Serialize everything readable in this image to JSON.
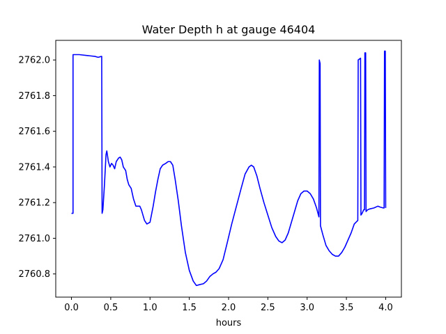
{
  "chart_data": {
    "type": "line",
    "title": "Water Depth h at gauge 46404",
    "xlabel": "hours",
    "ylabel": "",
    "xlim": [
      -0.2,
      4.2
    ],
    "ylim": [
      2760.67,
      2762.11
    ],
    "grid": false,
    "xticks": [
      0.0,
      0.5,
      1.0,
      1.5,
      2.0,
      2.5,
      3.0,
      3.5,
      4.0
    ],
    "xtick_labels": [
      "0.0",
      "0.5",
      "1.0",
      "1.5",
      "2.0",
      "2.5",
      "3.0",
      "3.5",
      "4.0"
    ],
    "yticks": [
      2760.8,
      2761.0,
      2761.2,
      2761.4,
      2761.6,
      2761.8,
      2762.0
    ],
    "ytick_labels": [
      "2760.8",
      "2761.0",
      "2761.2",
      "2761.4",
      "2761.6",
      "2761.8",
      "2762.0"
    ],
    "series_color": "#0000ff",
    "series": [
      {
        "points": [
          [
            0.0,
            2761.14
          ],
          [
            0.02,
            2761.14
          ],
          [
            0.02,
            2762.03
          ],
          [
            0.1,
            2762.03
          ],
          [
            0.2,
            2762.025
          ],
          [
            0.3,
            2762.02
          ],
          [
            0.34,
            2762.015
          ],
          [
            0.38,
            2762.02
          ],
          [
            0.385,
            2762.02
          ],
          [
            0.39,
            2761.14
          ],
          [
            0.4,
            2761.16
          ],
          [
            0.42,
            2761.3
          ],
          [
            0.44,
            2761.47
          ],
          [
            0.45,
            2761.49
          ],
          [
            0.47,
            2761.43
          ],
          [
            0.49,
            2761.4
          ],
          [
            0.51,
            2761.42
          ],
          [
            0.53,
            2761.41
          ],
          [
            0.55,
            2761.39
          ],
          [
            0.57,
            2761.43
          ],
          [
            0.6,
            2761.45
          ],
          [
            0.62,
            2761.455
          ],
          [
            0.64,
            2761.44
          ],
          [
            0.66,
            2761.4
          ],
          [
            0.69,
            2761.38
          ],
          [
            0.71,
            2761.33
          ],
          [
            0.73,
            2761.3
          ],
          [
            0.76,
            2761.28
          ],
          [
            0.79,
            2761.22
          ],
          [
            0.82,
            2761.18
          ],
          [
            0.87,
            2761.18
          ],
          [
            0.89,
            2761.16
          ],
          [
            0.93,
            2761.1
          ],
          [
            0.96,
            2761.08
          ],
          [
            1.0,
            2761.09
          ],
          [
            1.04,
            2761.18
          ],
          [
            1.07,
            2761.26
          ],
          [
            1.1,
            2761.33
          ],
          [
            1.13,
            2761.39
          ],
          [
            1.16,
            2761.41
          ],
          [
            1.2,
            2761.42
          ],
          [
            1.23,
            2761.43
          ],
          [
            1.26,
            2761.43
          ],
          [
            1.29,
            2761.41
          ],
          [
            1.32,
            2761.33
          ],
          [
            1.36,
            2761.21
          ],
          [
            1.4,
            2761.07
          ],
          [
            1.45,
            2760.92
          ],
          [
            1.5,
            2760.82
          ],
          [
            1.55,
            2760.76
          ],
          [
            1.59,
            2760.735
          ],
          [
            1.63,
            2760.74
          ],
          [
            1.68,
            2760.745
          ],
          [
            1.72,
            2760.76
          ],
          [
            1.76,
            2760.785
          ],
          [
            1.8,
            2760.8
          ],
          [
            1.84,
            2760.81
          ],
          [
            1.88,
            2760.83
          ],
          [
            1.93,
            2760.88
          ],
          [
            1.98,
            2760.97
          ],
          [
            2.04,
            2761.08
          ],
          [
            2.1,
            2761.18
          ],
          [
            2.16,
            2761.28
          ],
          [
            2.21,
            2761.36
          ],
          [
            2.26,
            2761.4
          ],
          [
            2.29,
            2761.41
          ],
          [
            2.32,
            2761.4
          ],
          [
            2.36,
            2761.35
          ],
          [
            2.4,
            2761.28
          ],
          [
            2.45,
            2761.2
          ],
          [
            2.5,
            2761.13
          ],
          [
            2.55,
            2761.06
          ],
          [
            2.6,
            2761.01
          ],
          [
            2.64,
            2760.985
          ],
          [
            2.68,
            2760.975
          ],
          [
            2.72,
            2760.99
          ],
          [
            2.76,
            2761.03
          ],
          [
            2.8,
            2761.09
          ],
          [
            2.84,
            2761.15
          ],
          [
            2.88,
            2761.21
          ],
          [
            2.92,
            2761.25
          ],
          [
            2.96,
            2761.265
          ],
          [
            3.0,
            2761.265
          ],
          [
            3.04,
            2761.25
          ],
          [
            3.08,
            2761.22
          ],
          [
            3.12,
            2761.17
          ],
          [
            3.15,
            2761.12
          ],
          [
            3.155,
            2762.0
          ],
          [
            3.165,
            2761.98
          ],
          [
            3.17,
            2761.07
          ],
          [
            3.2,
            2761.02
          ],
          [
            3.24,
            2760.96
          ],
          [
            3.28,
            2760.93
          ],
          [
            3.32,
            2760.91
          ],
          [
            3.36,
            2760.9
          ],
          [
            3.4,
            2760.9
          ],
          [
            3.44,
            2760.92
          ],
          [
            3.48,
            2760.95
          ],
          [
            3.52,
            2760.99
          ],
          [
            3.56,
            2761.03
          ],
          [
            3.6,
            2761.08
          ],
          [
            3.645,
            2761.1
          ],
          [
            3.65,
            2762.0
          ],
          [
            3.68,
            2762.01
          ],
          [
            3.685,
            2761.13
          ],
          [
            3.7,
            2761.14
          ],
          [
            3.72,
            2761.16
          ],
          [
            3.73,
            2761.16
          ],
          [
            3.735,
            2762.04
          ],
          [
            3.745,
            2762.04
          ],
          [
            3.75,
            2761.15
          ],
          [
            3.77,
            2761.16
          ],
          [
            3.8,
            2761.165
          ],
          [
            3.85,
            2761.17
          ],
          [
            3.9,
            2761.18
          ],
          [
            3.93,
            2761.175
          ],
          [
            3.97,
            2761.17
          ],
          [
            3.98,
            2761.17
          ],
          [
            3.985,
            2762.05
          ],
          [
            3.995,
            2762.05
          ],
          [
            4.0,
            2761.17
          ]
        ]
      }
    ]
  }
}
